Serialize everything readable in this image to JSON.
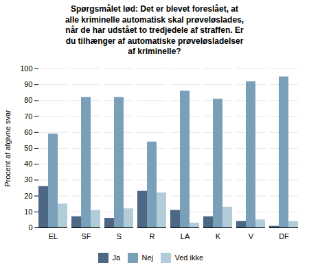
{
  "chart_data": {
    "type": "bar",
    "title": "Spørgsmålet lød: Det er blevet foreslået, at\nalle kriminelle automatisk skal prøveløslades,\nnår de har udstået to tredjedele af straffen. Er\ndu tilhænger af automatiske prøveløsladelser\naf kriminelle?",
    "categories": [
      "EL",
      "SF",
      "S",
      "R",
      "LA",
      "K",
      "V",
      "DF"
    ],
    "series": [
      {
        "name": "Ja",
        "color": "#4d6885",
        "values": [
          26,
          7,
          6,
          23,
          11,
          7,
          4,
          1
        ]
      },
      {
        "name": "Nej",
        "color": "#7a9fb8",
        "values": [
          59,
          82,
          82,
          54,
          86,
          81,
          92,
          95
        ]
      },
      {
        "name": "Ved ikke",
        "color": "#b3ccda",
        "values": [
          15,
          11,
          12,
          22,
          3,
          13,
          5,
          4
        ]
      }
    ],
    "ylabel": "Procent af afgivne svar",
    "ylim": [
      0,
      100
    ],
    "yticks": [
      0,
      10,
      20,
      30,
      40,
      50,
      60,
      70,
      80,
      90,
      100
    ],
    "grid": true,
    "legend": "bottom"
  }
}
